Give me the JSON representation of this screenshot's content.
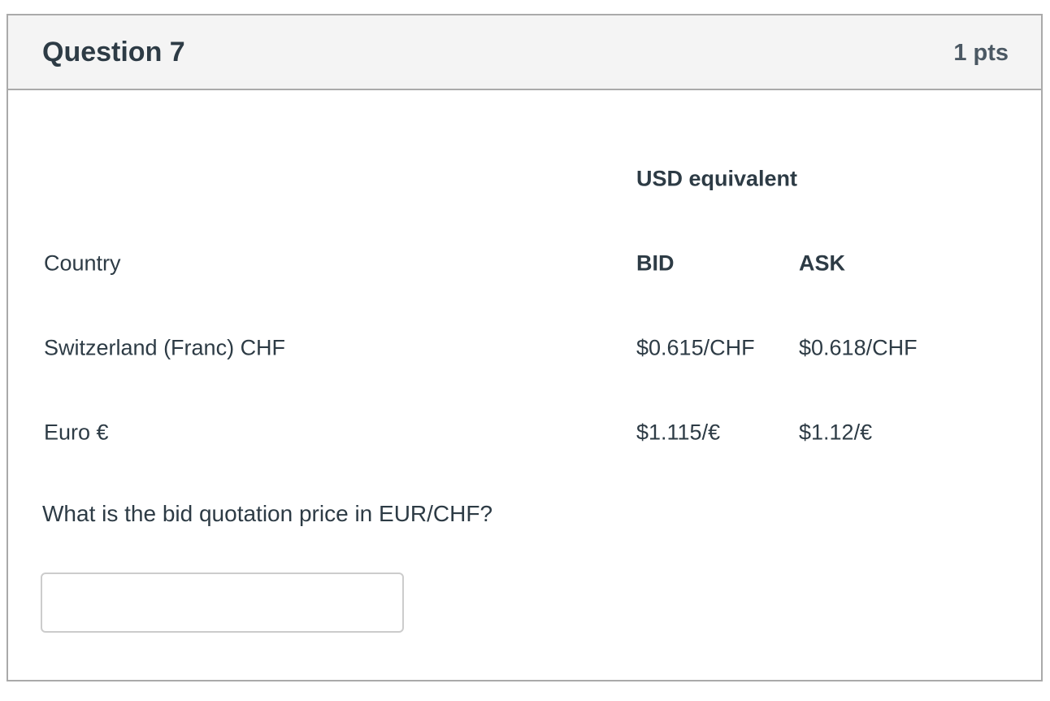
{
  "question": {
    "title": "Question 7",
    "points": "1 pts"
  },
  "table": {
    "group_header": "USD equivalent",
    "columns": [
      "Country",
      "BID",
      "ASK"
    ],
    "rows": [
      {
        "country": "Switzerland (Franc) CHF",
        "bid": "$0.615/CHF",
        "ask": "$0.618/CHF"
      },
      {
        "country": "Euro €",
        "bid": "$1.115/€",
        "ask": "$1.12/€"
      }
    ]
  },
  "prompt": "What is the bid quotation price in EUR/CHF?",
  "answer": {
    "value": ""
  }
}
